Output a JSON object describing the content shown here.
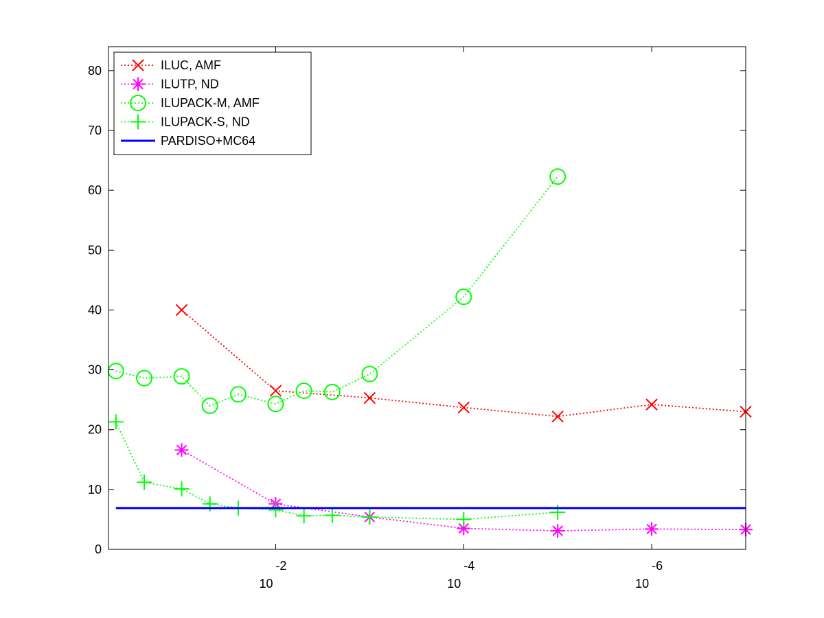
{
  "chart_data": {
    "type": "line",
    "title": "",
    "xlabel": "",
    "ylabel": "",
    "x_scale": "log",
    "x_direction": "decreasing",
    "xlim": [
      0.6,
      1e-07
    ],
    "ylim": [
      0,
      84
    ],
    "grid": false,
    "legend_position": "top-left",
    "x_ticks": [
      {
        "value": 0.01,
        "base": "10",
        "exponent": "-2"
      },
      {
        "value": 0.0001,
        "base": "10",
        "exponent": "-4"
      },
      {
        "value": 1e-06,
        "base": "10",
        "exponent": "-6"
      }
    ],
    "y_ticks": [
      "0",
      "10",
      "20",
      "30",
      "40",
      "50",
      "60",
      "70",
      "80"
    ],
    "series": [
      {
        "name": "ILUC, AMF",
        "color": "#ff0000",
        "marker": "x",
        "line_style": "dotted",
        "x": [
          0.1,
          0.01,
          0.001,
          0.0001,
          1e-05,
          1e-06,
          1e-07
        ],
        "y": [
          40,
          26.5,
          25.3,
          23.7,
          22.2,
          24.2,
          23.0
        ]
      },
      {
        "name": "ILUTP,  ND",
        "color": "#ff00ff",
        "marker": "asterisk",
        "line_style": "dotted",
        "x": [
          0.1,
          0.01,
          0.001,
          0.0001,
          1e-05,
          1e-06,
          1e-07
        ],
        "y": [
          16.6,
          7.6,
          5.4,
          3.5,
          3.1,
          3.4,
          3.3
        ]
      },
      {
        "name": "ILUPACK-M, AMF",
        "color": "#00ff00",
        "marker": "circle",
        "line_style": "dotted",
        "x": [
          0.5,
          0.25,
          0.1,
          0.05,
          0.025,
          0.01,
          0.005,
          0.0025,
          0.001,
          0.0001,
          1e-05
        ],
        "y": [
          29.8,
          28.6,
          28.9,
          24.0,
          25.9,
          24.3,
          26.5,
          26.3,
          29.3,
          42.2,
          62.3
        ]
      },
      {
        "name": "ILUPACK-S, ND",
        "color": "#00ff00",
        "marker": "plus",
        "line_style": "dotted",
        "x": [
          0.5,
          0.25,
          0.1,
          0.05,
          0.025,
          0.01,
          0.005,
          0.0025,
          0.001,
          0.0001,
          1e-05
        ],
        "y": [
          21.3,
          11.2,
          10.1,
          7.6,
          6.9,
          6.6,
          5.6,
          5.7,
          5.4,
          5.0,
          6.2
        ]
      },
      {
        "name": "PARDISO+MC64",
        "color": "#0000ff",
        "marker": "none",
        "line_style": "solid",
        "x": [
          0.5,
          1e-07
        ],
        "y": [
          6.9,
          6.9
        ]
      }
    ]
  }
}
